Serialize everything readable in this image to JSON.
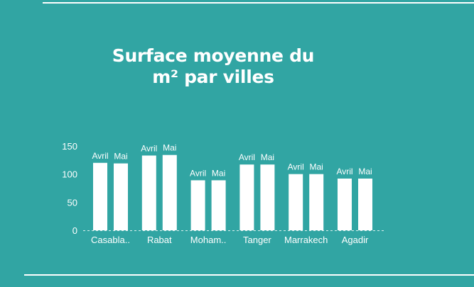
{
  "title_lines": [
    "Surface moyenne du",
    "m² par villes"
  ],
  "colors": {
    "background": "#31a5a3",
    "bar": "#ffffff",
    "text": "#ffffff"
  },
  "chart_data": {
    "type": "bar",
    "title": "Surface moyenne du m² par villes",
    "categories": [
      "Casabla..",
      "Rabat",
      "Moham..",
      "Tanger",
      "Marrakech",
      "Agadir"
    ],
    "series": [
      {
        "name": "Avril",
        "values": [
          120,
          133,
          89,
          117,
          100,
          92
        ]
      },
      {
        "name": "Mai",
        "values": [
          119,
          134,
          89,
          117,
          100,
          92
        ]
      }
    ],
    "bar_labels": [
      "Avril",
      "Mai"
    ],
    "yticks": [
      0,
      50,
      100,
      150
    ],
    "ylim": [
      0,
      150
    ],
    "xlabel": "",
    "ylabel": "",
    "legend": "none",
    "grid": false,
    "baseline": "dashed"
  }
}
